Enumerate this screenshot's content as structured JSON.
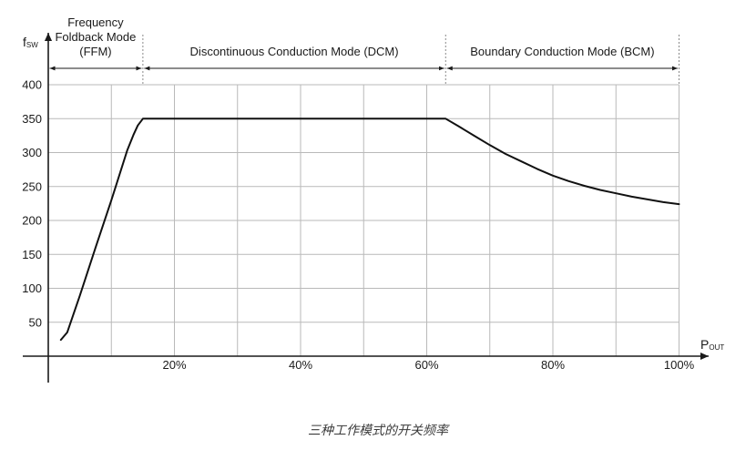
{
  "caption": "三种工作模式的开关频率",
  "chart_data": {
    "type": "line",
    "ylabel": {
      "main": "f",
      "sub": "SW"
    },
    "xlabel": {
      "main": "P",
      "sub": "OUT"
    },
    "xlim": [
      0,
      100
    ],
    "ylim": [
      0,
      400
    ],
    "yticks": [
      50,
      100,
      150,
      200,
      250,
      300,
      350,
      400
    ],
    "xticks": [
      20,
      40,
      60,
      80,
      100
    ],
    "xtick_labels": [
      "20%",
      "40%",
      "60%",
      "80%",
      "100%"
    ],
    "x_gridlines": [
      10,
      20,
      30,
      40,
      50,
      60,
      70,
      80,
      90,
      100
    ],
    "grid": true,
    "line_color": "#111111",
    "regions": [
      {
        "label_lines": [
          "Frequency",
          "Foldback Mode",
          "(FFM)"
        ],
        "x_start": 0,
        "x_end": 15
      },
      {
        "label_lines": [
          "Discontinuous Conduction Mode (DCM)"
        ],
        "x_start": 15,
        "x_end": 63
      },
      {
        "label_lines": [
          "Boundary Conduction Mode (BCM)"
        ],
        "x_start": 63,
        "x_end": 100
      }
    ],
    "series": [
      {
        "x": [
          2,
          3,
          5,
          7.5,
          10,
          12.5,
          13.5,
          14.2,
          15,
          63,
          65,
          67.5,
          70,
          72.5,
          75,
          77.5,
          80,
          82.5,
          85,
          87.5,
          90,
          92.5,
          95,
          97.5,
          100
        ],
        "y": [
          24,
          35,
          89,
          160,
          230,
          303,
          326,
          340,
          350,
          350,
          339,
          325,
          311,
          298,
          287,
          276,
          266,
          258,
          251,
          245,
          240,
          235,
          231,
          227,
          224
        ]
      }
    ]
  }
}
